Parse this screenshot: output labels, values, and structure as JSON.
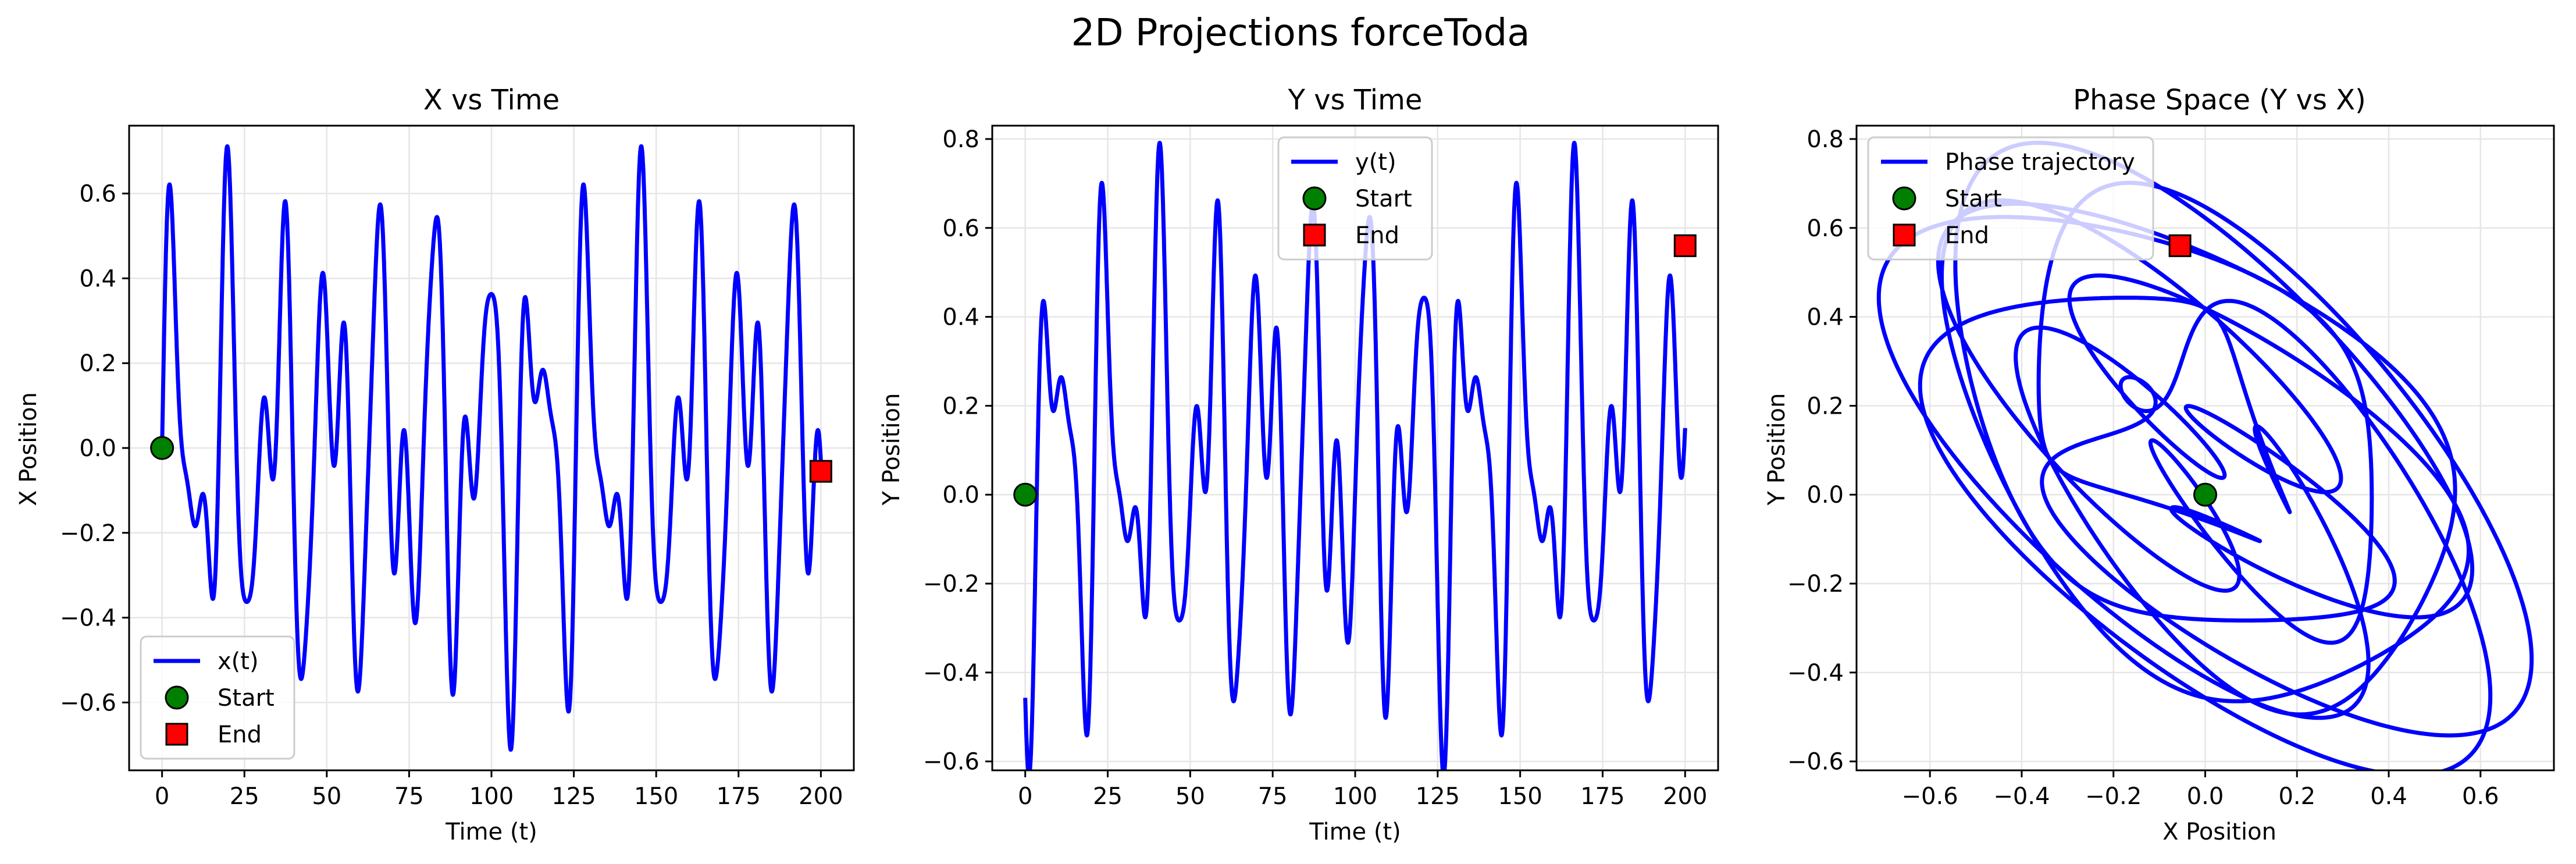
{
  "figure": {
    "title": "2D Projections forceToda"
  },
  "chart_data": [
    {
      "type": "line",
      "title": "X vs Time",
      "xlabel": "Time (t)",
      "ylabel": "X Position",
      "xlim": [
        -10,
        210
      ],
      "ylim": [
        -0.76,
        0.76
      ],
      "xticks": [
        0,
        25,
        50,
        75,
        100,
        125,
        150,
        175,
        200
      ],
      "xtick_labels": [
        "0",
        "25",
        "50",
        "75",
        "100",
        "125",
        "150",
        "175",
        "200"
      ],
      "yticks": [
        -0.6,
        -0.4,
        -0.2,
        0.0,
        0.2,
        0.4,
        0.6
      ],
      "ytick_labels": [
        "−0.6",
        "−0.4",
        "−0.2",
        "0.0",
        "0.2",
        "0.4",
        "0.6"
      ],
      "grid": true,
      "legend": {
        "position": "lower-left",
        "entries": [
          "x(t)",
          "Start",
          "End"
        ]
      },
      "series": [
        {
          "name": "x(t)",
          "kind": "line",
          "color": "#0000ff",
          "model": {
            "expression": "sum of cosines",
            "t_range": [
              0,
              200
            ],
            "components": [
              {
                "amplitude": 0.35,
                "frequency": 0.4,
                "phase": -1.5708
              },
              {
                "amplitude": 0.27,
                "frequency": 0.7,
                "phase": -1.5708
              },
              {
                "amplitude": 0.11,
                "frequency": 1.05,
                "phase": -1.5708
              }
            ]
          }
        },
        {
          "name": "Start",
          "kind": "marker",
          "shape": "circle",
          "color": "#008000",
          "x": 0,
          "y": 0.0
        },
        {
          "name": "End",
          "kind": "marker",
          "shape": "square",
          "color": "#ff0000",
          "x": 200,
          "y": -0.055
        }
      ]
    },
    {
      "type": "line",
      "title": "Y vs Time",
      "xlabel": "Time (t)",
      "ylabel": "Y Position",
      "xlim": [
        -10,
        210
      ],
      "ylim": [
        -0.62,
        0.83
      ],
      "xticks": [
        0,
        25,
        50,
        75,
        100,
        125,
        150,
        175,
        200
      ],
      "xtick_labels": [
        "0",
        "25",
        "50",
        "75",
        "100",
        "125",
        "150",
        "175",
        "200"
      ],
      "yticks": [
        -0.6,
        -0.4,
        -0.2,
        0.0,
        0.2,
        0.4,
        0.6,
        0.8
      ],
      "ytick_labels": [
        "−0.6",
        "−0.4",
        "−0.2",
        "0.0",
        "0.2",
        "0.4",
        "0.6",
        "0.8"
      ],
      "grid": true,
      "legend": {
        "position": "upper-center",
        "entries": [
          "y(t)",
          "Start",
          "End"
        ]
      },
      "series": [
        {
          "name": "y(t)",
          "kind": "line",
          "color": "#0000ff",
          "model": {
            "expression": "sum of cosines plus offset",
            "t_range": [
              0,
              200
            ],
            "offset": 0.08,
            "components": [
              {
                "amplitude": 0.35,
                "frequency": 0.4,
                "phase": 2.618
              },
              {
                "amplitude": 0.27,
                "frequency": 0.7,
                "phase": 2.618
              },
              {
                "amplitude": 0.11,
                "frequency": 1.05,
                "phase": 1.5708
              }
            ]
          }
        },
        {
          "name": "Start",
          "kind": "marker",
          "shape": "circle",
          "color": "#008000",
          "x": 0,
          "y": 0.0
        },
        {
          "name": "End",
          "kind": "marker",
          "shape": "square",
          "color": "#ff0000",
          "x": 200,
          "y": 0.56
        }
      ]
    },
    {
      "type": "line",
      "title": "Phase Space (Y vs X)",
      "xlabel": "X Position",
      "ylabel": "Y Position",
      "xlim": [
        -0.76,
        0.76
      ],
      "ylim": [
        -0.62,
        0.83
      ],
      "xticks": [
        -0.6,
        -0.4,
        -0.2,
        0.0,
        0.2,
        0.4,
        0.6
      ],
      "xtick_labels": [
        "−0.6",
        "−0.4",
        "−0.2",
        "0.0",
        "0.2",
        "0.4",
        "0.6"
      ],
      "yticks": [
        -0.6,
        -0.4,
        -0.2,
        0.0,
        0.2,
        0.4,
        0.6,
        0.8
      ],
      "ytick_labels": [
        "−0.6",
        "−0.4",
        "−0.2",
        "0.0",
        "0.2",
        "0.4",
        "0.6",
        "0.8"
      ],
      "grid": true,
      "legend": {
        "position": "upper-left",
        "entries": [
          "Phase trajectory",
          "Start",
          "End"
        ]
      },
      "series": [
        {
          "name": "Phase trajectory",
          "kind": "line",
          "color": "#0000ff",
          "parametric": "y(t) vs x(t)"
        },
        {
          "name": "Start",
          "kind": "marker",
          "shape": "circle",
          "color": "#008000",
          "x": 0.0,
          "y": 0.0
        },
        {
          "name": "End",
          "kind": "marker",
          "shape": "square",
          "color": "#ff0000",
          "x": -0.055,
          "y": 0.56
        }
      ]
    }
  ]
}
